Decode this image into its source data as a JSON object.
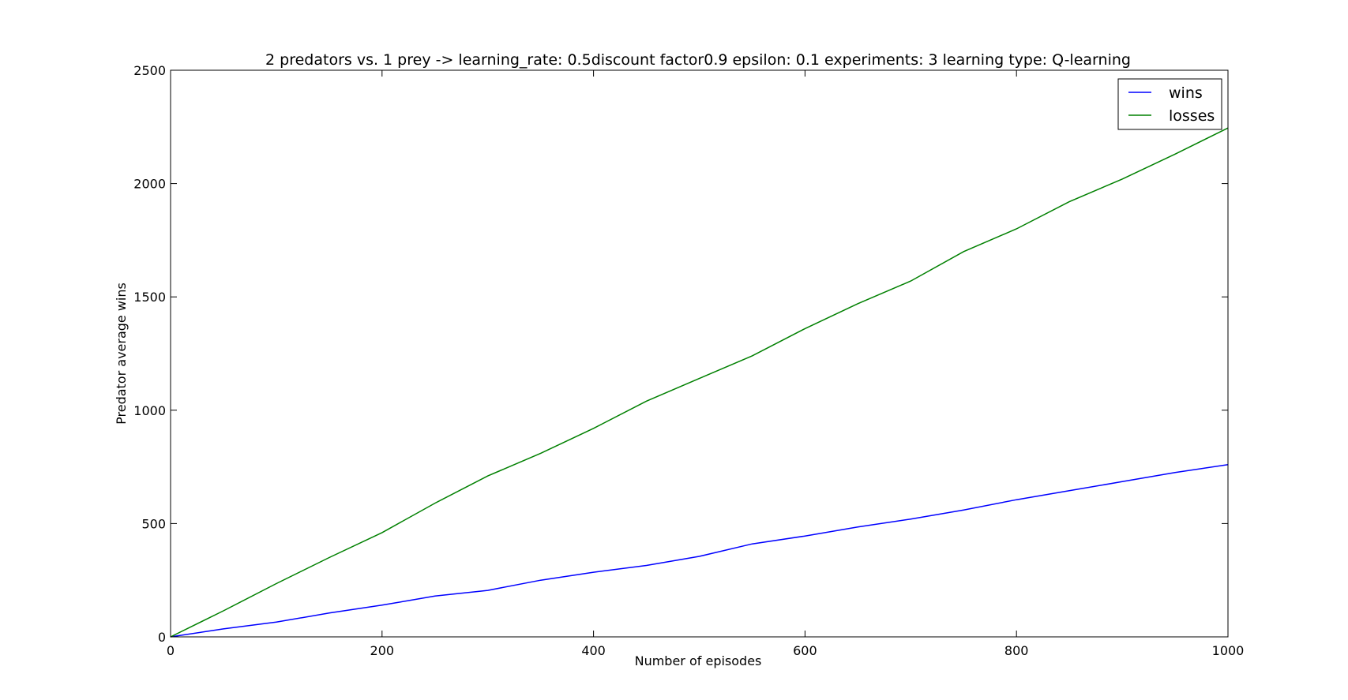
{
  "chart_data": {
    "type": "line",
    "title": "2 predators vs. 1 prey -> learning_rate: 0.5discount factor0.9 epsilon: 0.1 experiments: 3 learning type: Q-learning",
    "xlabel": "Number of episodes",
    "ylabel": "Predator average wins",
    "xlim": [
      0,
      1000
    ],
    "ylim": [
      0,
      2500
    ],
    "xticks": [
      0,
      200,
      400,
      600,
      800,
      1000
    ],
    "yticks": [
      0,
      500,
      1000,
      1500,
      2000,
      2500
    ],
    "grid": false,
    "legend_position": "top-right",
    "series": [
      {
        "name": "wins",
        "color": "#0000ff",
        "x": [
          0,
          50,
          100,
          150,
          200,
          250,
          300,
          350,
          400,
          450,
          500,
          550,
          600,
          650,
          700,
          750,
          800,
          850,
          900,
          950,
          1000
        ],
        "values": [
          0,
          35,
          65,
          105,
          140,
          180,
          205,
          250,
          285,
          315,
          355,
          410,
          445,
          485,
          520,
          560,
          605,
          645,
          685,
          725,
          760
        ]
      },
      {
        "name": "losses",
        "color": "#008000",
        "x": [
          0,
          50,
          100,
          150,
          200,
          250,
          300,
          350,
          400,
          450,
          500,
          550,
          600,
          650,
          700,
          750,
          800,
          850,
          900,
          950,
          1000
        ],
        "values": [
          0,
          115,
          235,
          350,
          460,
          590,
          710,
          810,
          920,
          1040,
          1140,
          1240,
          1360,
          1470,
          1570,
          1700,
          1800,
          1920,
          2020,
          2130,
          2245
        ]
      }
    ]
  }
}
